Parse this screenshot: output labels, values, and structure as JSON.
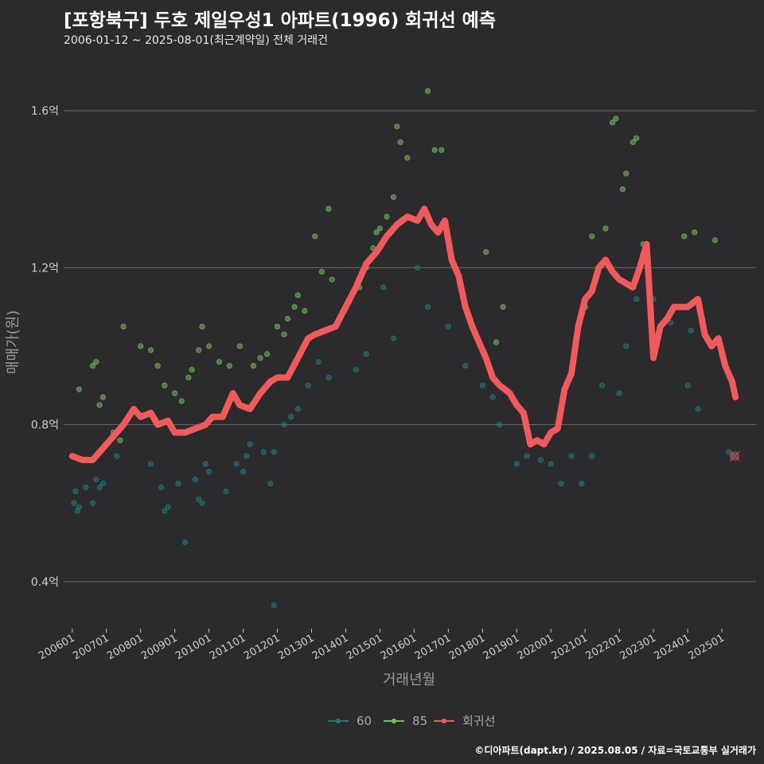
{
  "header": {
    "title": "[포항북구] 두호 제일우성1 아파트(1996) 회귀선 예측",
    "subtitle": "2006-01-12 ~ 2025-08-01(최근계약일) 전체 거래건"
  },
  "footer": {
    "credit": "©디아파트(dapt.kr) / 2025.08.05 / 자료=국토교통부 실거래가"
  },
  "colors": {
    "series60": "#1f7a7a",
    "series85": "#6fbf5a",
    "regression": "#f05a5a",
    "grid": "#6a6a6a",
    "background": "#2b2a2d"
  },
  "chart_data": {
    "type": "scatter",
    "title": "[포항북구] 두호 제일우성1 아파트(1996) 회귀선 예측",
    "xlabel": "거래년월",
    "ylabel": "매매가(원)",
    "xlim": [
      2005.75,
      2026.0
    ],
    "ylim": [
      0.28,
      1.72
    ],
    "yticks": [
      0.4,
      0.8,
      1.2,
      1.6
    ],
    "ytick_labels": [
      "0.4억",
      "0.8억",
      "1.2억",
      "1.6억"
    ],
    "xticks": [
      2006.0,
      2007.0,
      2008.0,
      2009.0,
      2010.0,
      2011.0,
      2012.0,
      2013.0,
      2014.0,
      2015.0,
      2016.0,
      2017.0,
      2018.0,
      2019.0,
      2020.0,
      2021.0,
      2022.0,
      2023.0,
      2024.0,
      2025.0
    ],
    "xtick_labels": [
      "200601",
      "200701",
      "200801",
      "200901",
      "201001",
      "201101",
      "201201",
      "201301",
      "201401",
      "201501",
      "201601",
      "201701",
      "201801",
      "201901",
      "202001",
      "202101",
      "202201",
      "202301",
      "202401",
      "202501"
    ],
    "legend": {
      "position": "bottom",
      "entries": [
        "60",
        "85",
        "회귀선"
      ]
    },
    "series": [
      {
        "name": "60",
        "points": [
          [
            2006.05,
            0.6
          ],
          [
            2006.1,
            0.63
          ],
          [
            2006.15,
            0.58
          ],
          [
            2006.2,
            0.59
          ],
          [
            2006.4,
            0.64
          ],
          [
            2006.6,
            0.6
          ],
          [
            2006.7,
            0.66
          ],
          [
            2006.8,
            0.64
          ],
          [
            2006.9,
            0.65
          ],
          [
            2007.3,
            0.72
          ],
          [
            2008.3,
            0.7
          ],
          [
            2008.6,
            0.64
          ],
          [
            2008.7,
            0.58
          ],
          [
            2008.8,
            0.59
          ],
          [
            2009.1,
            0.65
          ],
          [
            2009.3,
            0.5
          ],
          [
            2009.6,
            0.66
          ],
          [
            2009.7,
            0.61
          ],
          [
            2009.8,
            0.6
          ],
          [
            2009.9,
            0.7
          ],
          [
            2010.0,
            0.68
          ],
          [
            2010.5,
            0.63
          ],
          [
            2010.8,
            0.7
          ],
          [
            2011.0,
            0.68
          ],
          [
            2011.1,
            0.72
          ],
          [
            2011.2,
            0.75
          ],
          [
            2011.6,
            0.73
          ],
          [
            2011.8,
            0.65
          ],
          [
            2011.9,
            0.73
          ],
          [
            2012.2,
            0.8
          ],
          [
            2012.4,
            0.82
          ],
          [
            2012.6,
            0.84
          ],
          [
            2012.9,
            0.9
          ],
          [
            2013.2,
            0.96
          ],
          [
            2013.5,
            0.92
          ],
          [
            2014.3,
            0.94
          ],
          [
            2014.6,
            0.98
          ],
          [
            2015.1,
            1.15
          ],
          [
            2015.4,
            1.02
          ],
          [
            2016.1,
            1.2
          ],
          [
            2016.4,
            1.1
          ],
          [
            2017.0,
            1.05
          ],
          [
            2017.5,
            0.95
          ],
          [
            2018.0,
            0.9
          ],
          [
            2018.3,
            0.87
          ],
          [
            2018.5,
            0.8
          ],
          [
            2019.0,
            0.7
          ],
          [
            2019.3,
            0.72
          ],
          [
            2019.7,
            0.71
          ],
          [
            2020.0,
            0.7
          ],
          [
            2020.3,
            0.65
          ],
          [
            2020.6,
            0.72
          ],
          [
            2020.9,
            0.65
          ],
          [
            2021.2,
            0.72
          ],
          [
            2021.5,
            0.9
          ],
          [
            2022.0,
            0.88
          ],
          [
            2022.2,
            1.0
          ],
          [
            2022.5,
            1.12
          ],
          [
            2023.0,
            1.12
          ],
          [
            2023.5,
            1.06
          ],
          [
            2024.0,
            0.9
          ],
          [
            2024.3,
            0.84
          ],
          [
            2025.2,
            0.73
          ],
          [
            2025.3,
            0.72
          ],
          [
            2024.1,
            1.04
          ],
          [
            2011.9,
            0.34
          ]
        ]
      },
      {
        "name": "85",
        "points": [
          [
            2006.2,
            0.89
          ],
          [
            2006.6,
            0.95
          ],
          [
            2006.7,
            0.96
          ],
          [
            2006.8,
            0.85
          ],
          [
            2006.9,
            0.87
          ],
          [
            2007.2,
            0.78
          ],
          [
            2007.4,
            0.76
          ],
          [
            2007.5,
            1.05
          ],
          [
            2008.0,
            1.0
          ],
          [
            2008.3,
            0.99
          ],
          [
            2008.5,
            0.95
          ],
          [
            2008.7,
            0.9
          ],
          [
            2009.0,
            0.88
          ],
          [
            2009.2,
            0.86
          ],
          [
            2009.4,
            0.92
          ],
          [
            2009.5,
            0.94
          ],
          [
            2009.7,
            0.99
          ],
          [
            2009.8,
            1.05
          ],
          [
            2010.0,
            1.0
          ],
          [
            2010.3,
            0.96
          ],
          [
            2010.6,
            0.95
          ],
          [
            2010.9,
            1.0
          ],
          [
            2011.3,
            0.95
          ],
          [
            2011.5,
            0.97
          ],
          [
            2011.7,
            0.98
          ],
          [
            2012.0,
            1.05
          ],
          [
            2012.2,
            1.03
          ],
          [
            2012.3,
            1.07
          ],
          [
            2012.5,
            1.1
          ],
          [
            2012.6,
            1.13
          ],
          [
            2012.8,
            1.09
          ],
          [
            2013.1,
            1.28
          ],
          [
            2013.3,
            1.19
          ],
          [
            2013.5,
            1.35
          ],
          [
            2013.6,
            1.17
          ],
          [
            2014.0,
            1.1
          ],
          [
            2014.4,
            1.15
          ],
          [
            2014.6,
            1.2
          ],
          [
            2014.8,
            1.25
          ],
          [
            2014.9,
            1.29
          ],
          [
            2015.0,
            1.3
          ],
          [
            2015.2,
            1.33
          ],
          [
            2015.4,
            1.38
          ],
          [
            2015.5,
            1.56
          ],
          [
            2015.6,
            1.52
          ],
          [
            2015.8,
            1.48
          ],
          [
            2016.4,
            1.65
          ],
          [
            2016.6,
            1.5
          ],
          [
            2016.8,
            1.5
          ],
          [
            2018.1,
            1.24
          ],
          [
            2018.4,
            1.01
          ],
          [
            2018.6,
            1.1
          ],
          [
            2021.0,
            1.1
          ],
          [
            2021.2,
            1.28
          ],
          [
            2021.6,
            1.3
          ],
          [
            2021.8,
            1.57
          ],
          [
            2021.9,
            1.58
          ],
          [
            2022.1,
            1.4
          ],
          [
            2022.2,
            1.44
          ],
          [
            2022.4,
            1.52
          ],
          [
            2022.5,
            1.53
          ],
          [
            2022.7,
            1.26
          ],
          [
            2023.9,
            1.28
          ],
          [
            2024.2,
            1.29
          ],
          [
            2024.8,
            1.27
          ]
        ]
      }
    ],
    "regression": {
      "name": "회귀선",
      "points": [
        [
          2006.0,
          0.72
        ],
        [
          2006.3,
          0.71
        ],
        [
          2006.6,
          0.71
        ],
        [
          2006.9,
          0.74
        ],
        [
          2007.2,
          0.77
        ],
        [
          2007.5,
          0.8
        ],
        [
          2007.8,
          0.84
        ],
        [
          2008.0,
          0.82
        ],
        [
          2008.3,
          0.83
        ],
        [
          2008.5,
          0.8
        ],
        [
          2008.8,
          0.81
        ],
        [
          2009.0,
          0.78
        ],
        [
          2009.3,
          0.78
        ],
        [
          2009.6,
          0.79
        ],
        [
          2009.9,
          0.8
        ],
        [
          2010.1,
          0.82
        ],
        [
          2010.4,
          0.82
        ],
        [
          2010.7,
          0.88
        ],
        [
          2010.9,
          0.85
        ],
        [
          2011.2,
          0.84
        ],
        [
          2011.5,
          0.88
        ],
        [
          2011.8,
          0.91
        ],
        [
          2012.0,
          0.92
        ],
        [
          2012.3,
          0.92
        ],
        [
          2012.6,
          0.97
        ],
        [
          2012.9,
          1.02
        ],
        [
          2013.1,
          1.03
        ],
        [
          2013.4,
          1.04
        ],
        [
          2013.7,
          1.05
        ],
        [
          2014.0,
          1.1
        ],
        [
          2014.3,
          1.15
        ],
        [
          2014.6,
          1.21
        ],
        [
          2014.9,
          1.24
        ],
        [
          2015.2,
          1.28
        ],
        [
          2015.5,
          1.31
        ],
        [
          2015.8,
          1.33
        ],
        [
          2016.1,
          1.32
        ],
        [
          2016.3,
          1.35
        ],
        [
          2016.5,
          1.31
        ],
        [
          2016.7,
          1.29
        ],
        [
          2016.9,
          1.32
        ],
        [
          2017.1,
          1.22
        ],
        [
          2017.3,
          1.18
        ],
        [
          2017.5,
          1.1
        ],
        [
          2017.7,
          1.05
        ],
        [
          2017.9,
          1.01
        ],
        [
          2018.1,
          0.97
        ],
        [
          2018.3,
          0.92
        ],
        [
          2018.5,
          0.9
        ],
        [
          2018.8,
          0.88
        ],
        [
          2019.0,
          0.85
        ],
        [
          2019.2,
          0.83
        ],
        [
          2019.4,
          0.75
        ],
        [
          2019.6,
          0.76
        ],
        [
          2019.8,
          0.75
        ],
        [
          2020.0,
          0.78
        ],
        [
          2020.2,
          0.79
        ],
        [
          2020.4,
          0.89
        ],
        [
          2020.6,
          0.93
        ],
        [
          2020.8,
          1.05
        ],
        [
          2021.0,
          1.12
        ],
        [
          2021.2,
          1.14
        ],
        [
          2021.4,
          1.2
        ],
        [
          2021.6,
          1.22
        ],
        [
          2021.8,
          1.19
        ],
        [
          2022.0,
          1.17
        ],
        [
          2022.2,
          1.16
        ],
        [
          2022.4,
          1.15
        ],
        [
          2022.6,
          1.2
        ],
        [
          2022.8,
          1.26
        ],
        [
          2023.0,
          0.97
        ],
        [
          2023.2,
          1.05
        ],
        [
          2023.4,
          1.07
        ],
        [
          2023.6,
          1.1
        ],
        [
          2023.8,
          1.1
        ],
        [
          2024.0,
          1.1
        ],
        [
          2024.3,
          1.12
        ],
        [
          2024.5,
          1.03
        ],
        [
          2024.7,
          1.0
        ],
        [
          2024.9,
          1.02
        ],
        [
          2025.1,
          0.95
        ],
        [
          2025.3,
          0.91
        ],
        [
          2025.4,
          0.87
        ]
      ]
    },
    "prediction_marker": [
      2025.38,
      0.72
    ]
  }
}
